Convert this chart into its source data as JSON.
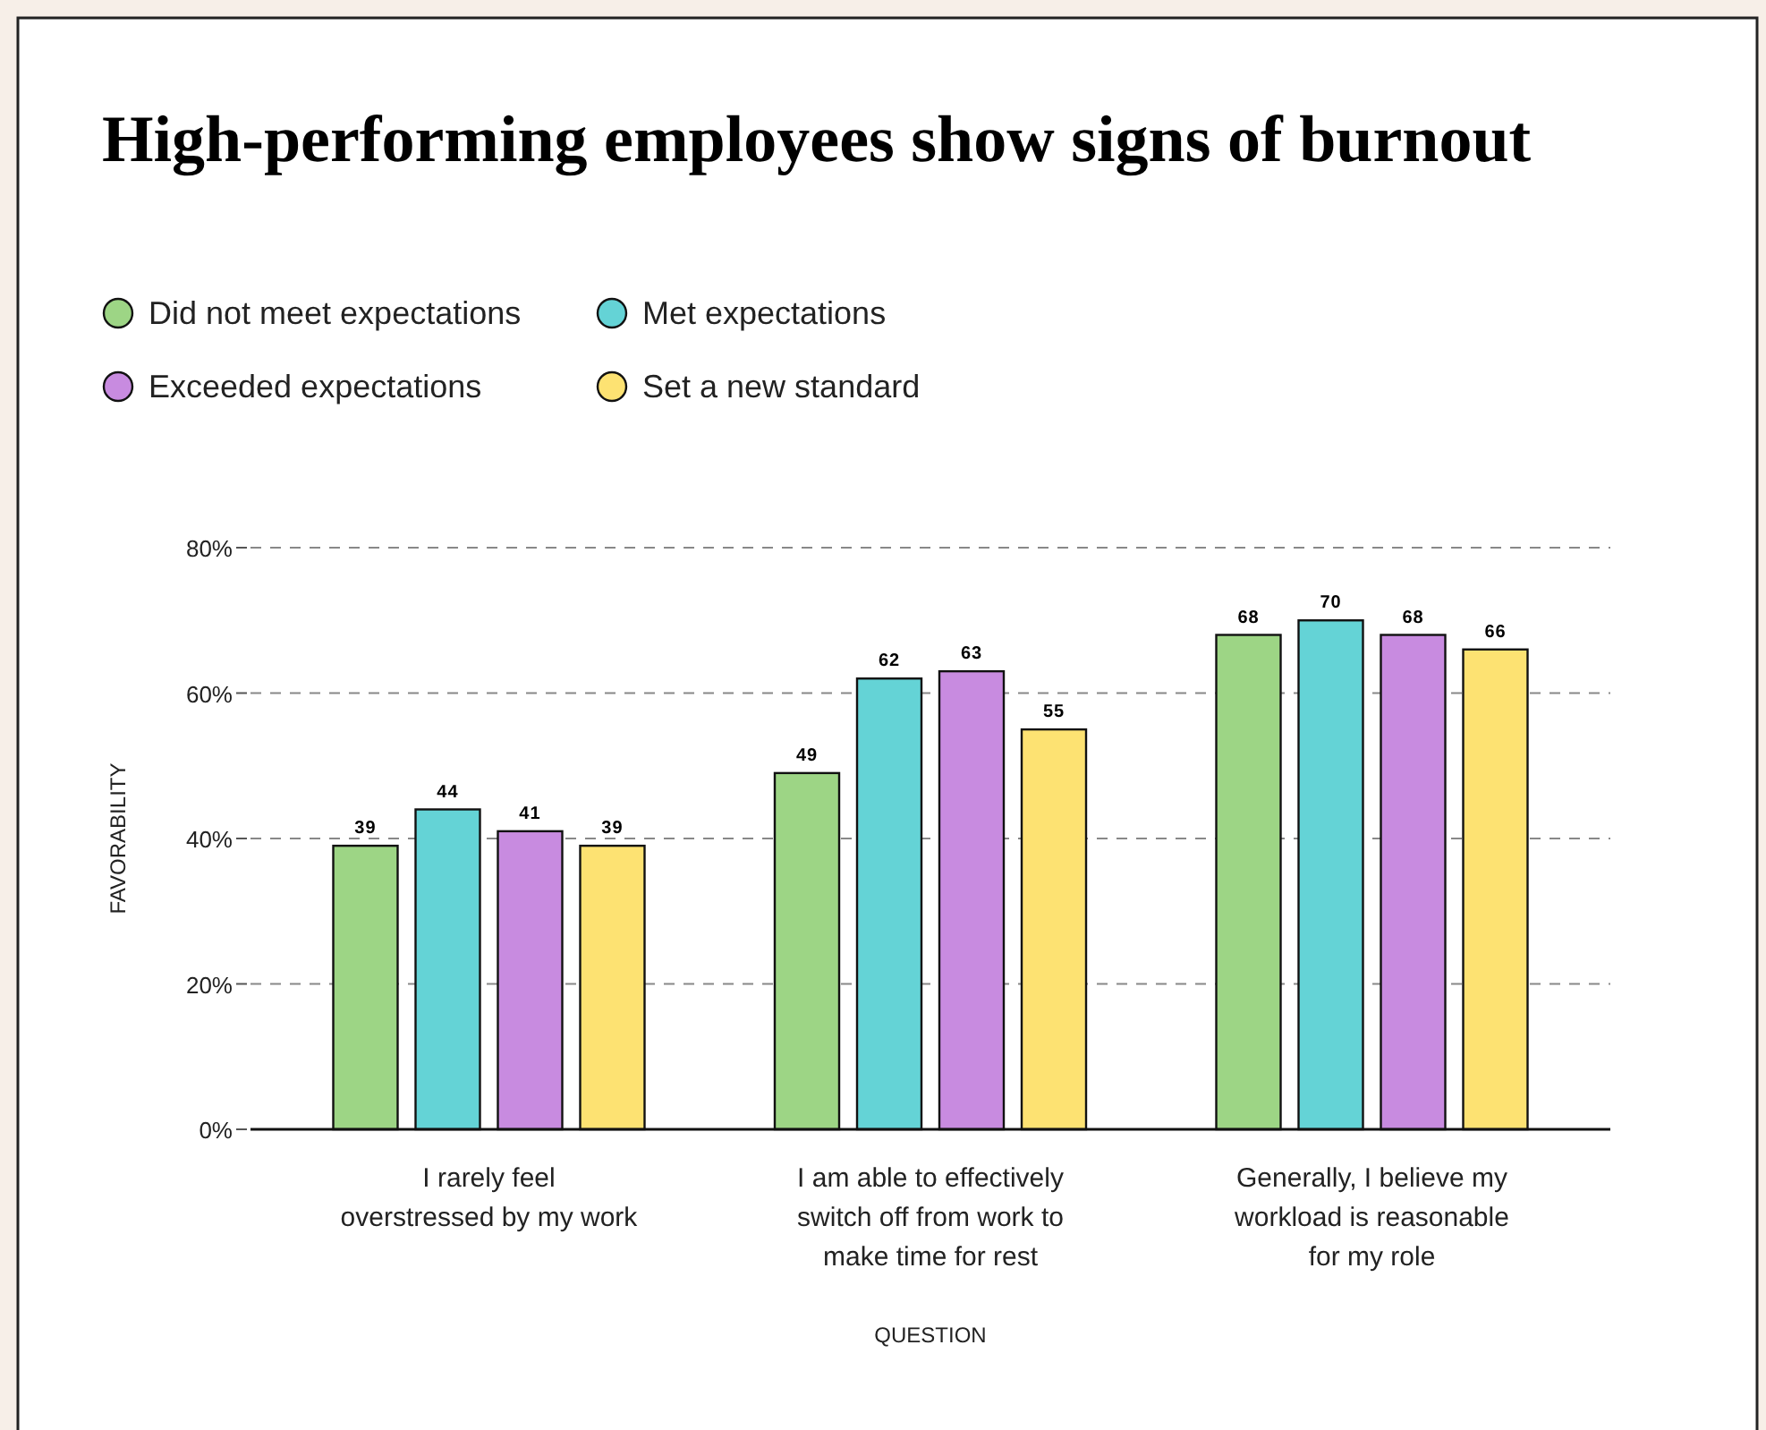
{
  "chart_data": {
    "type": "bar",
    "title": "High-performing employees show signs of burnout",
    "xlabel": "QUESTION",
    "ylabel": "FAVORABILITY",
    "categories": [
      "I rarely feel overstressed by my work",
      "I am able to effectively switch off from work to make time for rest",
      "Generally, I believe my workload is reasonable for my role"
    ],
    "series": [
      {
        "name": "Did not meet expectations",
        "color": "#9dd585",
        "values": [
          39,
          49,
          68
        ]
      },
      {
        "name": "Met expectations",
        "color": "#64d3d6",
        "values": [
          44,
          62,
          70
        ]
      },
      {
        "name": "Exceeded expectations",
        "color": "#c88be0",
        "values": [
          41,
          63,
          68
        ]
      },
      {
        "name": "Set a new standard",
        "color": "#fde272",
        "values": [
          39,
          55,
          66
        ]
      }
    ],
    "ylim": [
      0,
      80
    ],
    "yticks": [
      {
        "value": 0,
        "label": "0%"
      },
      {
        "value": 20,
        "label": "20%"
      },
      {
        "value": 40,
        "label": "40%"
      },
      {
        "value": 60,
        "label": "60%"
      },
      {
        "value": 80,
        "label": "80%"
      }
    ],
    "grid": "y",
    "legend": "top left",
    "data_labels": true
  }
}
